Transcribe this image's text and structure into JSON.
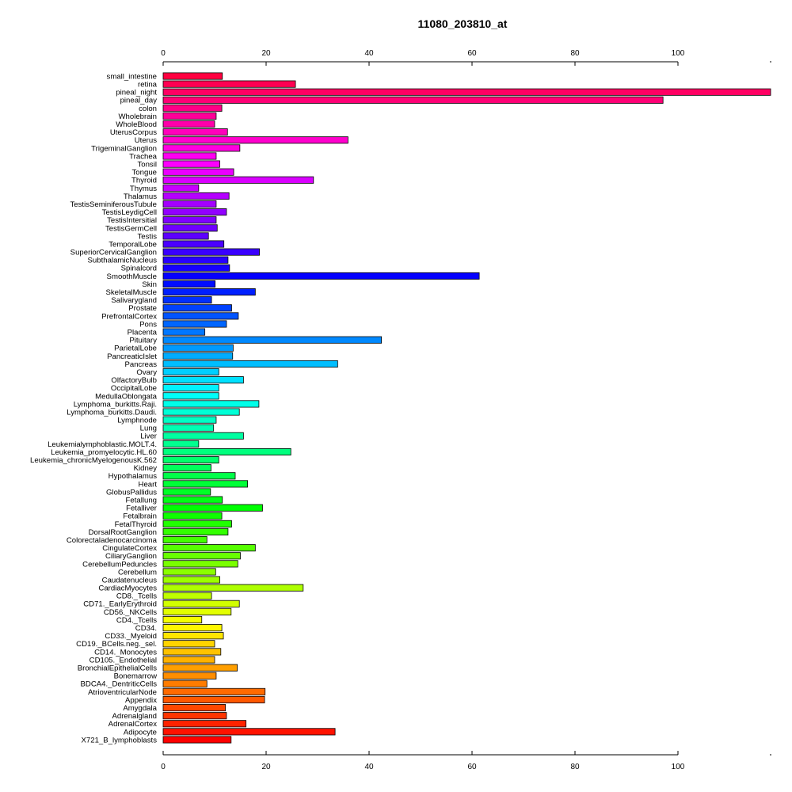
{
  "chart_data": {
    "type": "bar",
    "orientation": "horizontal",
    "title": "11080_203810_at",
    "xlabel": "",
    "ylabel": "",
    "xlim": [
      0,
      118
    ],
    "xticks": [
      0,
      20,
      40,
      60,
      80,
      100
    ],
    "tick_labels_position": "top-and-bottom",
    "grid": false,
    "legend": "none",
    "color_scheme": "rainbow",
    "categories": [
      "small_intestine",
      "retina",
      "pineal_night",
      "pineal_day",
      "colon",
      "Wholebrain",
      "WholeBlood",
      "UterusCorpus",
      "Uterus",
      "TrigeminalGanglion",
      "Trachea",
      "Tonsil",
      "Tongue",
      "Thyroid",
      "Thymus",
      "Thalamus",
      "TestisSeminiferousTubule",
      "TestisLeydigCell",
      "TestisIntersitial",
      "TestisGermCell",
      "Testis",
      "TemporalLobe",
      "SuperiorCervicalGanglion",
      "SubthalamicNucleus",
      "Spinalcord",
      "SmoothMuscle",
      "Skin",
      "SkeletalMuscle",
      "Salivarygland",
      "Prostate",
      "PrefrontalCortex",
      "Pons",
      "Placenta",
      "Pituitary",
      "ParietalLobe",
      "PancreaticIslet",
      "Pancreas",
      "Ovary",
      "OlfactoryBulb",
      "OccipitalLobe",
      "MedullaOblongata",
      "Lymphoma_burkitts.Raji.",
      "Lymphoma_burkitts.Daudi.",
      "Lymphnode",
      "Lung",
      "Liver",
      "Leukemialymphoblastic.MOLT.4.",
      "Leukemia_promyelocytic.HL.60",
      "Leukemia_chronicMyelogenousK.562",
      "Kidney",
      "Hypothalamus",
      "Heart",
      "GlobusPallidus",
      "Fetallung",
      "Fetalliver",
      "Fetalbrain",
      "FetalThyroid",
      "DorsalRootGanglion",
      "Colorectaladenocarcinoma",
      "CingulateCortex",
      "CiliaryGanglion",
      "CerebellumPeduncles",
      "Cerebellum",
      "Caudatenucleus",
      "CardiacMyocytes",
      "CD8._Tcells",
      "CD71._EarlyErythroid",
      "CD56._NKCells",
      "CD4._Tcells",
      "CD34.",
      "CD33._Myeloid",
      "CD19._BCells.neg._sel.",
      "CD14._Monocytes",
      "CD105._Endothelial",
      "BronchialEpithelialCells",
      "Bonemarrow",
      "BDCA4._DentriticCells",
      "AtrioventricularNode",
      "Appendix",
      "Amygdala",
      "Adrenalgland",
      "AdrenalCortex",
      "Adipocyte",
      "X721_B_lymphoblasts"
    ],
    "values": [
      11.5,
      25.7,
      118.0,
      97.1,
      11.4,
      10.3,
      10.0,
      12.5,
      35.9,
      14.9,
      10.3,
      11.0,
      13.7,
      29.2,
      6.9,
      12.8,
      10.3,
      12.3,
      10.3,
      10.5,
      8.8,
      11.8,
      18.7,
      12.6,
      12.9,
      61.4,
      10.1,
      17.9,
      9.4,
      13.3,
      14.6,
      12.3,
      8.1,
      42.4,
      13.6,
      13.5,
      33.9,
      10.8,
      15.6,
      10.8,
      10.8,
      18.6,
      14.8,
      10.3,
      9.8,
      15.6,
      6.9,
      24.8,
      10.8,
      9.3,
      14.0,
      16.4,
      9.2,
      11.5,
      19.3,
      11.4,
      13.3,
      12.6,
      8.5,
      17.9,
      15.0,
      14.5,
      10.2,
      11.0,
      27.2,
      9.4,
      14.8,
      13.2,
      7.5,
      11.4,
      11.7,
      10.0,
      11.2,
      10.0,
      14.4,
      10.3,
      8.5,
      19.8,
      19.7,
      12.1,
      12.3,
      16.1,
      33.4,
      13.2
    ]
  }
}
